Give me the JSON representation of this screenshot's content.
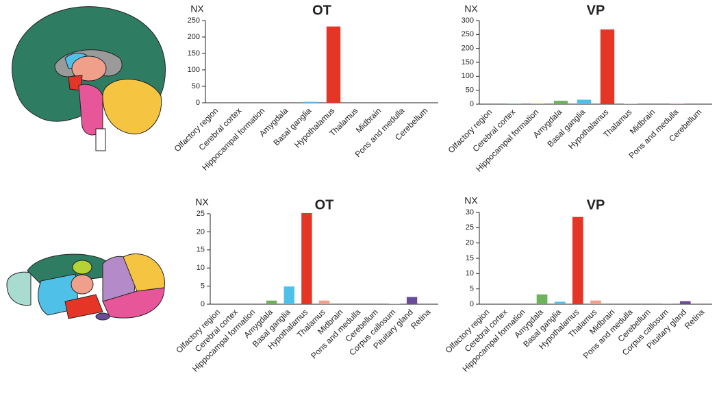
{
  "chart_data": [
    {
      "type": "bar",
      "title": "OT",
      "ylabel": "NX",
      "categories": [
        "Olfactory region",
        "Cerebral cortex",
        "Hippocampal formation",
        "Amygdala",
        "Basal ganglia",
        "Hypothalamus",
        "Thalamus",
        "Midbrain",
        "Pons and medulla",
        "Cerebellum"
      ],
      "values": [
        0,
        0,
        0,
        0,
        3,
        232,
        0,
        0,
        0,
        0
      ],
      "colors": [
        "#8fd3c4",
        "#2e8a6a",
        "#b5d334",
        "#6cb35a",
        "#4fc1e9",
        "#e53527",
        "#f0a08a",
        "#b48bc8",
        "#e8569a",
        "#f5c542"
      ],
      "ylim": [
        0,
        250
      ],
      "yticks": [
        0,
        50,
        100,
        150,
        200,
        250
      ]
    },
    {
      "type": "bar",
      "title": "VP",
      "ylabel": "NX",
      "categories": [
        "Olfactory region",
        "Cerebral cortex",
        "Hippocampal formation",
        "Amygdala",
        "Basal ganglia",
        "Hypothalamus",
        "Thalamus",
        "Midbrain",
        "Pons and medulla",
        "Cerebellum"
      ],
      "values": [
        0,
        1,
        3,
        12,
        16,
        268,
        1,
        0,
        1,
        0
      ],
      "colors": [
        "#8fd3c4",
        "#2e8a6a",
        "#b5d334",
        "#6cb35a",
        "#4fc1e9",
        "#e53527",
        "#f0a08a",
        "#b48bc8",
        "#e8569a",
        "#f5c542"
      ],
      "ylim": [
        0,
        300
      ],
      "yticks": [
        0,
        50,
        100,
        150,
        200,
        250,
        300
      ]
    },
    {
      "type": "bar",
      "title": "OT",
      "ylabel": "NX",
      "categories": [
        "Olfactory region",
        "Cerebral cortex",
        "Hippocampal formation",
        "Amygdala",
        "Basal ganglia",
        "Hypothalamus",
        "Thalamus",
        "Midbrain",
        "Pons and medulla",
        "Cerebellum",
        "Corpus callosum",
        "Pituitary gland",
        "Retina"
      ],
      "values": [
        0,
        0,
        0,
        1,
        4.9,
        25.2,
        1,
        0,
        0,
        0,
        0.1,
        2,
        0
      ],
      "colors": [
        "#8fd3c4",
        "#2e8a6a",
        "#b5d334",
        "#6cb35a",
        "#4fc1e9",
        "#e53527",
        "#f0a08a",
        "#b48bc8",
        "#e8569a",
        "#f5c542",
        "#a0a0a0",
        "#6b4c9a",
        "#999999"
      ],
      "ylim": [
        0,
        25
      ],
      "yticks": [
        0,
        5,
        10,
        15,
        20,
        25
      ]
    },
    {
      "type": "bar",
      "title": "VP",
      "ylabel": "NX",
      "categories": [
        "Olfactory region",
        "Cerebral cortex",
        "Hippocampal formation",
        "Amygdala",
        "Basal ganglia",
        "Hypothalamus",
        "Thalamus",
        "Midbrain",
        "Pons and medulla",
        "Cerebellum",
        "Corpus callosum",
        "Pituitary gland",
        "Retina"
      ],
      "values": [
        0,
        0,
        0,
        3.2,
        0.8,
        28.5,
        1.2,
        0,
        0,
        0,
        0.2,
        1,
        0
      ],
      "colors": [
        "#8fd3c4",
        "#2e8a6a",
        "#b5d334",
        "#6cb35a",
        "#4fc1e9",
        "#e53527",
        "#f0a08a",
        "#b48bc8",
        "#e8569a",
        "#f5c542",
        "#a0a0a0",
        "#6b4c9a",
        "#999999"
      ],
      "ylim": [
        0,
        30
      ],
      "yticks": [
        0,
        5,
        10,
        15,
        20,
        25,
        30
      ]
    }
  ]
}
